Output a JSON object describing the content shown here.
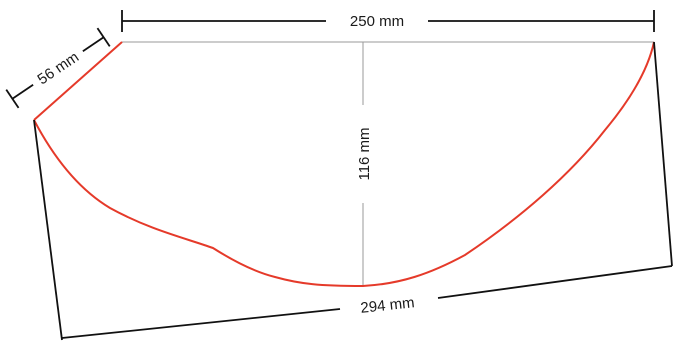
{
  "dimensions": {
    "top_width": "250 mm",
    "side_length": "56 mm",
    "depth": "116 mm",
    "bottom_length": "294 mm"
  },
  "colors": {
    "outline": "#e53a2a",
    "dimension_line": "#111111",
    "center_line": "#9a9a9a"
  }
}
